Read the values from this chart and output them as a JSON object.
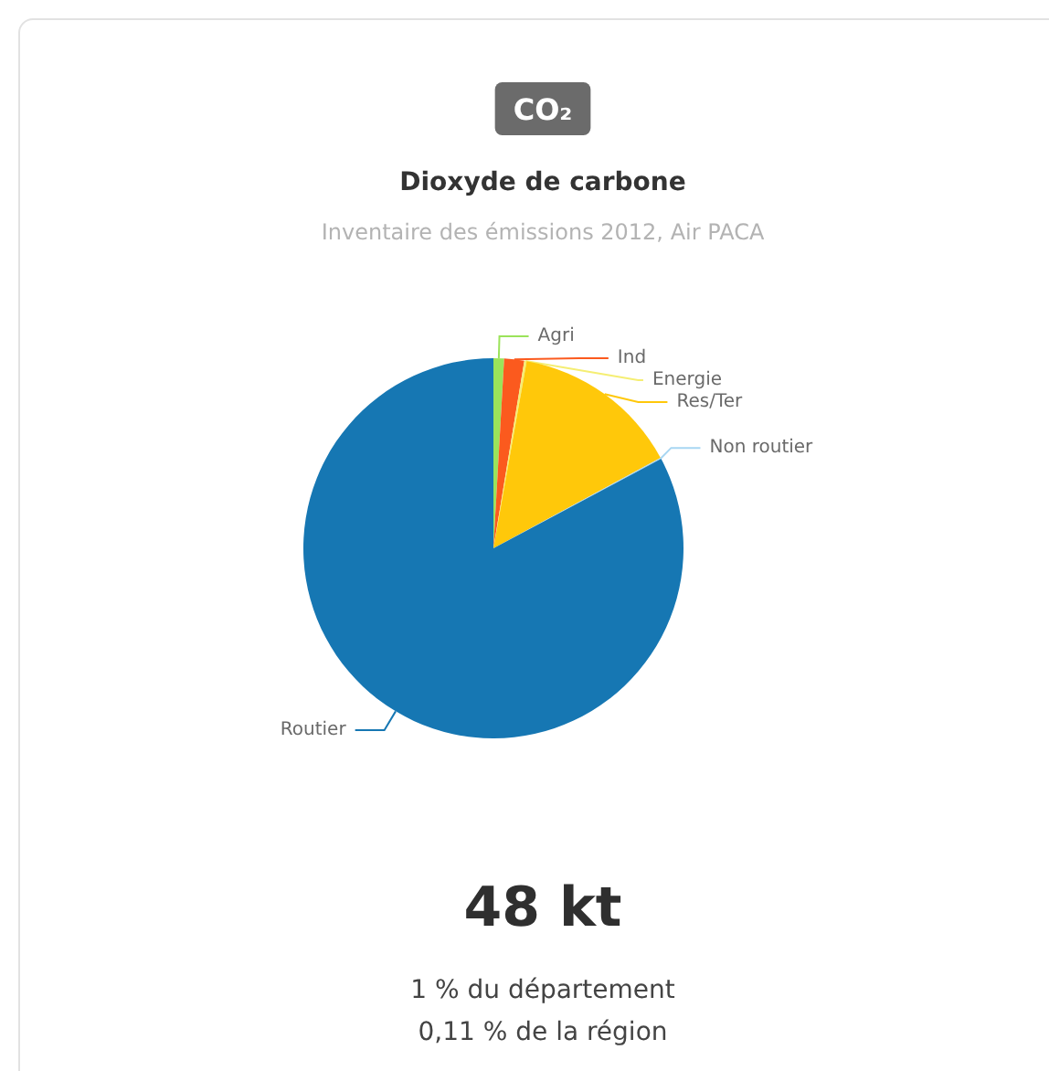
{
  "chart_data": {
    "type": "pie",
    "title": "Dioxyde de carbone",
    "subtitle": "Inventaire des émissions 2012, Air PACA",
    "categories": [
      "Agri",
      "Ind",
      "Energie",
      "Res/Ter",
      "Non routier",
      "Routier"
    ],
    "values": [
      0.9,
      1.7,
      0.2,
      14.3,
      0.1,
      82.8
    ],
    "colors": [
      "#9be35a",
      "#fb5a1e",
      "#f5ee73",
      "#ffc80a",
      "#a8d6f2",
      "#1677b3"
    ],
    "annotations": [
      "CO₂",
      "48 kt",
      "1 % du département",
      "0,11 % de la région"
    ]
  }
}
